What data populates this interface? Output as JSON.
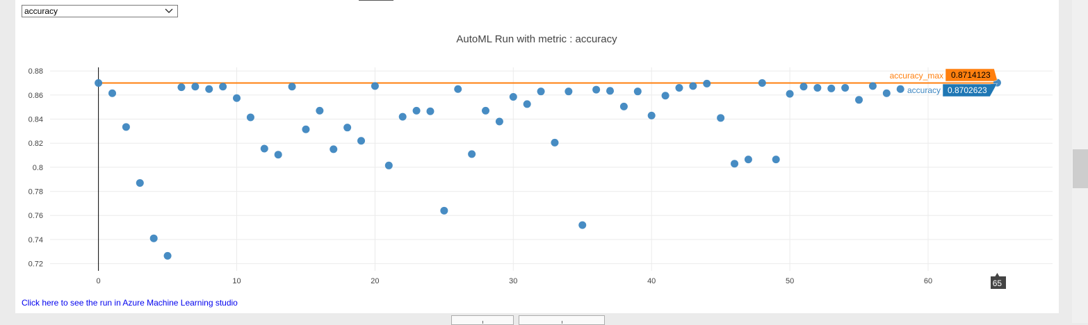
{
  "metric_select": {
    "value": "accuracy"
  },
  "link": {
    "text": "Click here to see the run in Azure Machine Learning studio"
  },
  "colors": {
    "accuracy": "#3d86c0",
    "accuracy_max": "#ff7f0e",
    "grid": "#ebebeb",
    "tooltip_x": "#444444"
  },
  "chart_data": {
    "type": "scatter",
    "title": "AutoML Run with metric : accuracy",
    "xlim": [
      -3.5,
      69
    ],
    "ylim": [
      0.714,
      0.883
    ],
    "x_ticks": [
      0,
      10,
      20,
      30,
      40,
      50,
      60
    ],
    "x_tick_labels": [
      "0",
      "10",
      "20",
      "30",
      "40",
      "50",
      "60"
    ],
    "y_ticks": [
      0.72,
      0.74,
      0.76,
      0.78,
      0.8,
      0.82,
      0.84,
      0.86,
      0.88
    ],
    "y_tick_labels": [
      "0.72",
      "0.74",
      "0.76",
      "0.78",
      "0.8",
      "0.82",
      "0.84",
      "0.86",
      "0.88"
    ],
    "grid": true,
    "series": [
      {
        "name": "accuracy",
        "mode": "markers",
        "x": [
          0,
          1,
          2,
          3,
          4,
          5,
          6,
          7,
          8,
          9,
          10,
          11,
          12,
          13,
          14,
          15,
          16,
          17,
          18,
          19,
          20,
          21,
          22,
          23,
          24,
          25,
          26,
          27,
          28,
          29,
          30,
          31,
          32,
          33,
          34,
          35,
          36,
          37,
          38,
          39,
          40,
          41,
          42,
          43,
          44,
          45,
          46,
          47,
          48,
          49,
          50,
          51,
          52,
          53,
          54,
          55,
          56,
          57,
          58,
          65
        ],
        "values": [
          0.87,
          0.8615,
          0.8335,
          0.787,
          0.741,
          0.7265,
          0.8665,
          0.867,
          0.865,
          0.867,
          0.8575,
          0.8415,
          0.8155,
          0.8105,
          0.867,
          0.8315,
          0.847,
          0.815,
          0.833,
          0.822,
          0.8675,
          0.8015,
          0.842,
          0.847,
          0.8465,
          0.764,
          0.865,
          0.811,
          0.847,
          0.838,
          0.8585,
          0.8525,
          0.863,
          0.8205,
          0.863,
          0.752,
          0.8645,
          0.8635,
          0.8505,
          0.863,
          0.843,
          0.8595,
          0.866,
          0.8675,
          0.8695,
          0.841,
          0.803,
          0.8065,
          0.87,
          0.8065,
          0.861,
          0.867,
          0.866,
          0.8655,
          0.866,
          0.856,
          0.8675,
          0.8615,
          0.865,
          0.8702623
        ]
      },
      {
        "name": "accuracy_max",
        "mode": "lines",
        "x": [
          0,
          65
        ],
        "values": [
          0.87,
          0.87
        ]
      }
    ],
    "hover": {
      "x_label": "65",
      "labels": [
        {
          "series": "accuracy_max",
          "value": "0.8714123"
        },
        {
          "series": "accuracy",
          "value": "0.8702623"
        }
      ]
    }
  }
}
